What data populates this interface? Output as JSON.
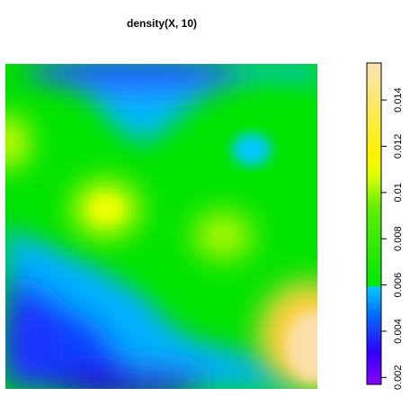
{
  "chart_data": {
    "type": "heatmap",
    "title": "density(X, 10)",
    "colorbar": {
      "ticks": [
        "0.002",
        "0.004",
        "0.006",
        "0.008",
        "0.01",
        "0.012",
        "0.014"
      ],
      "tick_values": [
        0.002,
        0.004,
        0.006,
        0.008,
        0.01,
        0.012,
        0.014
      ],
      "range": [
        0.0017,
        0.0156
      ],
      "colors": [
        "#7f00ff",
        "#0000ff",
        "#00c8ff",
        "#00ee00",
        "#ffff00",
        "#fce1b0"
      ]
    }
  }
}
